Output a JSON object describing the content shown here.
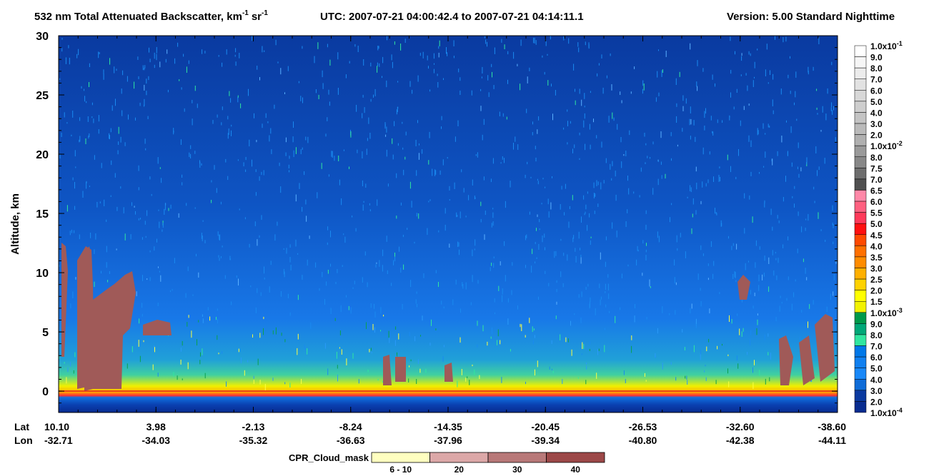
{
  "chart_data": {
    "type": "curtain",
    "title": [
      "532 nm Total Attenuated Backscatter, km",
      "-1",
      "sr",
      "-1"
    ],
    "utc": "UTC:  2007-07-21 04:00:42.4  to  2007-07-21 04:14:11.1",
    "version": "Version: 5.00  Standard  Nighttime",
    "ylabel": "Altitude, km",
    "ylim": [
      -1.8,
      30
    ],
    "yticks": [
      0,
      5,
      10,
      15,
      20,
      25,
      30
    ],
    "x_rows": [
      "Lat",
      "Lon"
    ],
    "lat": [
      "10.10",
      "3.98",
      "-2.13",
      "-8.24",
      "-14.35",
      "-20.45",
      "-26.53",
      "-32.60",
      "-38.60"
    ],
    "lon": [
      "-32.71",
      "-34.03",
      "-35.32",
      "-36.63",
      "-37.96",
      "-39.34",
      "-40.80",
      "-42.38",
      "-44.11"
    ],
    "colorbar_labels": [
      {
        "base": "1.0x10",
        "exp": "-1"
      },
      "9.0",
      "8.0",
      "7.0",
      "6.0",
      "5.0",
      "4.0",
      "3.0",
      "2.0",
      {
        "base": "1.0x10",
        "exp": "-2"
      },
      "8.0",
      "7.5",
      "7.0",
      "6.5",
      "6.0",
      "5.5",
      "5.0",
      "4.5",
      "4.0",
      "3.5",
      "3.0",
      "2.5",
      "2.0",
      "1.5",
      {
        "base": "1.0x10",
        "exp": "-3"
      },
      "9.0",
      "8.0",
      "7.0",
      "6.0",
      "5.0",
      "4.0",
      "3.0",
      "2.0",
      {
        "base": "1.0x10",
        "exp": "-4"
      }
    ],
    "colorbar_colors": [
      "#ffffff",
      "#f6f6f6",
      "#ececec",
      "#e2e2e2",
      "#d8d8d8",
      "#cecece",
      "#c4c4c4",
      "#bababa",
      "#b0b0b0",
      "#9a9a9a",
      "#888888",
      "#6e6e6e",
      "#505050",
      "#ff88a8",
      "#ff6080",
      "#ff3a5a",
      "#ff1010",
      "#ff4a00",
      "#ff7000",
      "#ff8c00",
      "#ffb000",
      "#ffd200",
      "#ffff00",
      "#f2f200",
      "#009a4a",
      "#00a878",
      "#30e6a0",
      "#0078e8",
      "#1080f0",
      "#1888f8",
      "#0e6cd8",
      "#0a3aa0",
      "#082c90"
    ],
    "cloud_mask": {
      "title": "CPR_Cloud_mask",
      "labels": [
        "6 - 10",
        "20",
        "30",
        "40"
      ],
      "colors": [
        "#ffffc0",
        "#dca8a8",
        "#b87878",
        "#9c4848"
      ]
    }
  }
}
